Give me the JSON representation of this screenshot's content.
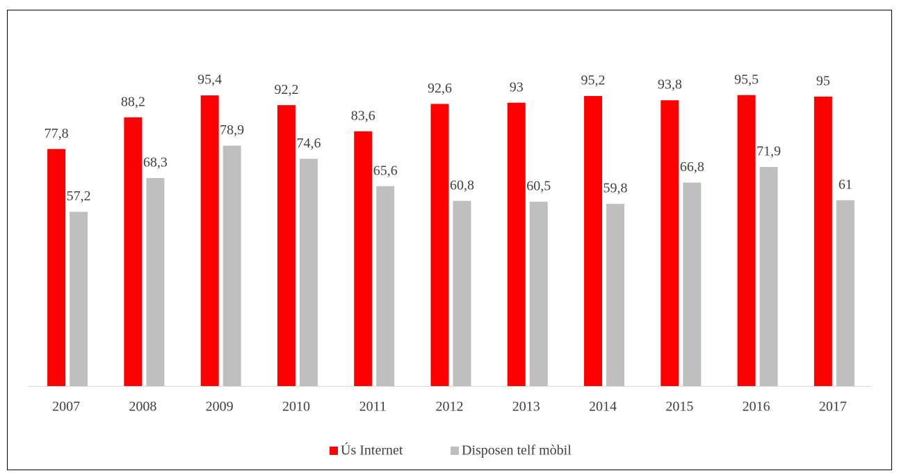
{
  "chart_data": {
    "type": "bar",
    "categories": [
      "2007",
      "2008",
      "2009",
      "2010",
      "2011",
      "2012",
      "2013",
      "2014",
      "2015",
      "2016",
      "2017"
    ],
    "series": [
      {
        "name": "Ús Internet",
        "color": "#ff0000",
        "values": [
          77.8,
          88.2,
          95.4,
          92.2,
          83.6,
          92.6,
          93,
          95.2,
          93.8,
          95.5,
          95
        ],
        "value_labels": [
          "77,8",
          "88,2",
          "95,4",
          "92,2",
          "83,6",
          "92,6",
          "93",
          "95,2",
          "93,8",
          "95,5",
          "95"
        ]
      },
      {
        "name": "Disposen telf mòbil",
        "color": "#bfbfbf",
        "values": [
          57.2,
          68.3,
          78.9,
          74.6,
          65.6,
          60.8,
          60.5,
          59.8,
          66.8,
          71.9,
          61
        ],
        "value_labels": [
          "57,2",
          "68,3",
          "78,9",
          "74,6",
          "65,6",
          "60,8",
          "60,5",
          "59,8",
          "66,8",
          "71,9",
          "61"
        ]
      }
    ],
    "ylim": [
      0,
      100
    ],
    "legend": "bottom"
  }
}
